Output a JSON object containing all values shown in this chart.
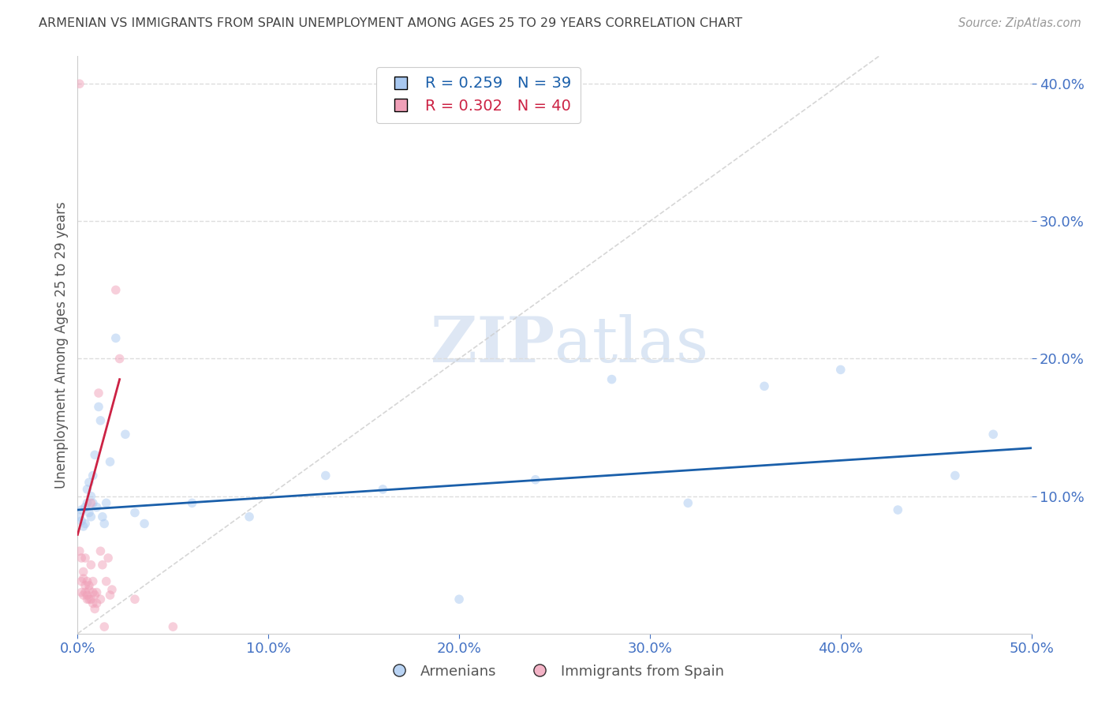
{
  "title": "ARMENIAN VS IMMIGRANTS FROM SPAIN UNEMPLOYMENT AMONG AGES 25 TO 29 YEARS CORRELATION CHART",
  "source": "Source: ZipAtlas.com",
  "xlabel": "",
  "ylabel": "Unemployment Among Ages 25 to 29 years",
  "xlim": [
    0,
    0.5
  ],
  "ylim": [
    0,
    0.42
  ],
  "xticks": [
    0.0,
    0.1,
    0.2,
    0.3,
    0.4,
    0.5
  ],
  "yticks": [
    0.1,
    0.2,
    0.3,
    0.4
  ],
  "blue_color": "#a8c8f0",
  "pink_color": "#f0a0b8",
  "trend_blue_color": "#1a5faa",
  "trend_pink_color": "#cc2244",
  "diag_color": "#cccccc",
  "legend_R_blue": "R = 0.259",
  "legend_N_blue": "N = 39",
  "legend_R_pink": "R = 0.302",
  "legend_N_pink": "N = 40",
  "legend_label_blue": "Armenians",
  "legend_label_pink": "Immigrants from Spain",
  "armenian_x": [
    0.001,
    0.002,
    0.002,
    0.003,
    0.004,
    0.004,
    0.005,
    0.005,
    0.006,
    0.006,
    0.007,
    0.007,
    0.008,
    0.008,
    0.009,
    0.01,
    0.011,
    0.012,
    0.013,
    0.014,
    0.015,
    0.017,
    0.02,
    0.025,
    0.03,
    0.035,
    0.06,
    0.09,
    0.13,
    0.16,
    0.2,
    0.24,
    0.28,
    0.32,
    0.36,
    0.4,
    0.43,
    0.46,
    0.48
  ],
  "armenian_y": [
    0.085,
    0.09,
    0.082,
    0.078,
    0.08,
    0.092,
    0.095,
    0.105,
    0.088,
    0.11,
    0.1,
    0.085,
    0.095,
    0.115,
    0.13,
    0.092,
    0.165,
    0.155,
    0.085,
    0.08,
    0.095,
    0.125,
    0.215,
    0.145,
    0.088,
    0.08,
    0.095,
    0.085,
    0.115,
    0.105,
    0.025,
    0.112,
    0.185,
    0.095,
    0.18,
    0.192,
    0.09,
    0.115,
    0.145
  ],
  "spain_x": [
    0.001,
    0.001,
    0.002,
    0.002,
    0.002,
    0.003,
    0.003,
    0.003,
    0.004,
    0.004,
    0.004,
    0.005,
    0.005,
    0.005,
    0.006,
    0.006,
    0.006,
    0.007,
    0.007,
    0.007,
    0.008,
    0.008,
    0.008,
    0.009,
    0.009,
    0.01,
    0.01,
    0.011,
    0.012,
    0.012,
    0.013,
    0.014,
    0.015,
    0.016,
    0.017,
    0.018,
    0.02,
    0.022,
    0.03,
    0.05
  ],
  "spain_y": [
    0.4,
    0.06,
    0.055,
    0.038,
    0.03,
    0.04,
    0.045,
    0.028,
    0.035,
    0.03,
    0.055,
    0.025,
    0.038,
    0.028,
    0.035,
    0.025,
    0.032,
    0.095,
    0.05,
    0.025,
    0.03,
    0.038,
    0.022,
    0.018,
    0.028,
    0.03,
    0.022,
    0.175,
    0.025,
    0.06,
    0.05,
    0.005,
    0.038,
    0.055,
    0.028,
    0.032,
    0.25,
    0.2,
    0.025,
    0.005
  ],
  "watermark_zip": "ZIP",
  "watermark_atlas": "atlas",
  "background_color": "#ffffff",
  "grid_color": "#dddddd",
  "axis_label_color": "#4472c4",
  "title_color": "#444444",
  "ylabel_color": "#555555",
  "scatter_size": 70,
  "scatter_alpha": 0.5,
  "trend_blue_start_x": 0.0,
  "trend_blue_end_x": 0.5,
  "trend_pink_start_x": 0.0,
  "trend_pink_end_x": 0.022
}
